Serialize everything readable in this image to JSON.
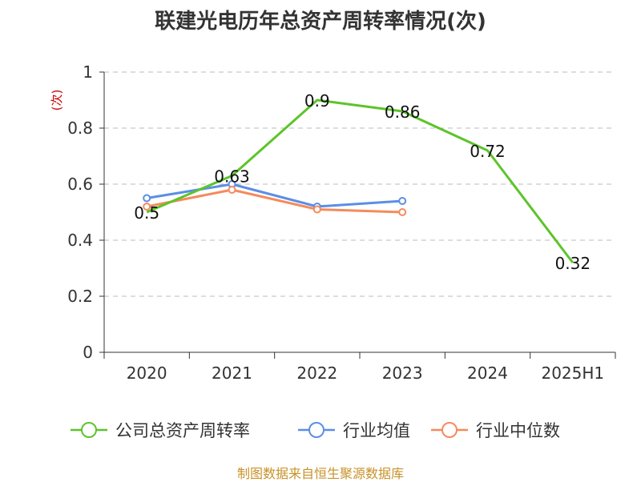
{
  "chart_data": {
    "type": "line",
    "title": "联建光电历年总资产周转率情况(次)",
    "ylabel": "(次)",
    "xlabel": "",
    "categories": [
      "2020",
      "2021",
      "2022",
      "2023",
      "2024",
      "2025H1"
    ],
    "ylim": [
      0,
      1
    ],
    "yticks": [
      0,
      0.2,
      0.4,
      0.6,
      0.8,
      1
    ],
    "ytick_labels": [
      "0",
      "0.2",
      "0.4",
      "0.6",
      "0.8",
      "1"
    ],
    "grid": true,
    "legend_position": "bottom",
    "series": [
      {
        "name": "公司总资产周转率",
        "color": "#5cc42b",
        "values": [
          0.5,
          0.63,
          0.9,
          0.86,
          0.72,
          0.32
        ],
        "labels": [
          "0.5",
          "0.63",
          "0.9",
          "0.86",
          "0.72",
          "0.32"
        ],
        "show_labels": true,
        "markers": false
      },
      {
        "name": "行业均值",
        "color": "#5b8ee6",
        "values": [
          0.55,
          0.6,
          0.52,
          0.54,
          null,
          null
        ],
        "show_labels": false,
        "markers": true
      },
      {
        "name": "行业中位数",
        "color": "#f58a5c",
        "values": [
          0.52,
          0.58,
          0.51,
          0.5,
          null,
          null
        ],
        "show_labels": false,
        "markers": true
      }
    ]
  },
  "source_note": "制图数据来自恒生聚源数据库"
}
